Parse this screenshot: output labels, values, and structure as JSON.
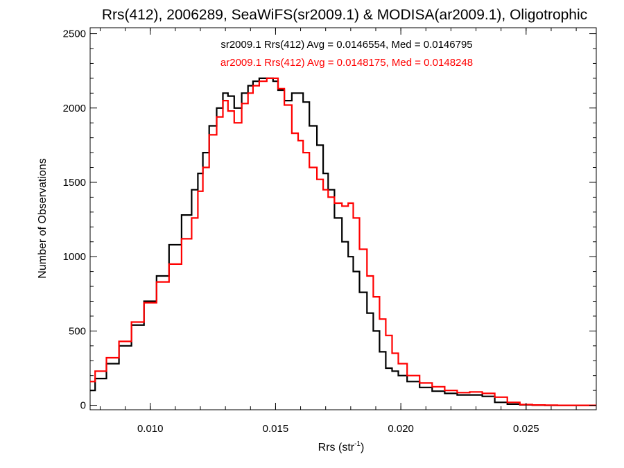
{
  "chart_data": {
    "type": "line",
    "title": "Rrs(412), 2006289, SeaWiFS(sr2009.1) & MODISA(ar2009.1), Oligotrophic",
    "xlabel": "Rrs (str",
    "xlabel_superscript": "-1",
    "xlabel_suffix": ")",
    "ylabel": "Number of Observations",
    "xlim": [
      0.0076,
      0.0278
    ],
    "ylim": [
      -30,
      2540
    ],
    "xticks": [
      {
        "value": 0.01,
        "label": "0.010"
      },
      {
        "value": 0.015,
        "label": "0.015"
      },
      {
        "value": 0.02,
        "label": "0.020"
      },
      {
        "value": 0.025,
        "label": "0.025"
      }
    ],
    "yticks": [
      {
        "value": 0,
        "label": "0"
      },
      {
        "value": 500,
        "label": "500"
      },
      {
        "value": 1000,
        "label": "1000"
      },
      {
        "value": 1500,
        "label": "1500"
      },
      {
        "value": 2000,
        "label": "2000"
      },
      {
        "value": 2500,
        "label": "2500"
      }
    ],
    "grid": false,
    "legend_position": "top-center",
    "series": [
      {
        "name": "sr2009.1 Rrs(412) Avg = 0.0146554, Med = 0.0146795",
        "color": "#000000",
        "step": true,
        "x": [
          0.0076,
          0.008,
          0.0085,
          0.009,
          0.0095,
          0.01,
          0.0105,
          0.011,
          0.0115,
          0.0118,
          0.012,
          0.0122,
          0.0125,
          0.0128,
          0.013,
          0.0132,
          0.0135,
          0.0138,
          0.014,
          0.0142,
          0.0145,
          0.0148,
          0.015,
          0.0152,
          0.0155,
          0.0158,
          0.016,
          0.0162,
          0.0165,
          0.0168,
          0.017,
          0.0172,
          0.0175,
          0.0178,
          0.018,
          0.0182,
          0.0185,
          0.0188,
          0.019,
          0.0193,
          0.0195,
          0.0198,
          0.02,
          0.0205,
          0.021,
          0.0215,
          0.022,
          0.0225,
          0.023,
          0.0235,
          0.024,
          0.0245,
          0.025,
          0.0255,
          0.026,
          0.0265,
          0.027,
          0.0278
        ],
        "y": [
          100,
          180,
          280,
          400,
          540,
          700,
          870,
          1080,
          1280,
          1450,
          1560,
          1700,
          1880,
          2000,
          2100,
          2080,
          2000,
          2100,
          2150,
          2180,
          2200,
          2200,
          2180,
          2120,
          2050,
          2100,
          2100,
          2040,
          1880,
          1750,
          1560,
          1450,
          1260,
          1100,
          1000,
          900,
          760,
          620,
          500,
          360,
          250,
          230,
          200,
          160,
          120,
          95,
          80,
          70,
          70,
          60,
          20,
          8,
          3,
          1,
          0,
          0,
          0,
          0
        ]
      },
      {
        "name": "ar2009.1 Rrs(412) Avg = 0.0148175, Med = 0.0148248",
        "color": "#ff0000",
        "step": true,
        "x": [
          0.0076,
          0.008,
          0.0085,
          0.009,
          0.0095,
          0.01,
          0.0105,
          0.011,
          0.0115,
          0.0118,
          0.012,
          0.0122,
          0.0125,
          0.0128,
          0.013,
          0.0132,
          0.0135,
          0.0138,
          0.014,
          0.0142,
          0.0145,
          0.0148,
          0.015,
          0.0152,
          0.0155,
          0.0158,
          0.016,
          0.0162,
          0.0165,
          0.0168,
          0.017,
          0.0172,
          0.0175,
          0.0178,
          0.018,
          0.0182,
          0.0185,
          0.0188,
          0.019,
          0.0193,
          0.0195,
          0.0198,
          0.02,
          0.0205,
          0.021,
          0.0215,
          0.022,
          0.0225,
          0.023,
          0.0235,
          0.024,
          0.0245,
          0.025,
          0.0255,
          0.026,
          0.0265,
          0.027,
          0.0278
        ],
        "y": [
          160,
          230,
          320,
          430,
          560,
          690,
          830,
          950,
          1120,
          1260,
          1440,
          1600,
          1820,
          1940,
          2050,
          1980,
          1900,
          2030,
          2100,
          2150,
          2180,
          2200,
          2200,
          2130,
          2020,
          1830,
          1780,
          1700,
          1600,
          1520,
          1450,
          1400,
          1360,
          1340,
          1360,
          1260,
          1050,
          870,
          730,
          580,
          470,
          350,
          280,
          200,
          150,
          125,
          100,
          85,
          90,
          80,
          55,
          20,
          5,
          2,
          1,
          0,
          0,
          0
        ]
      }
    ]
  }
}
